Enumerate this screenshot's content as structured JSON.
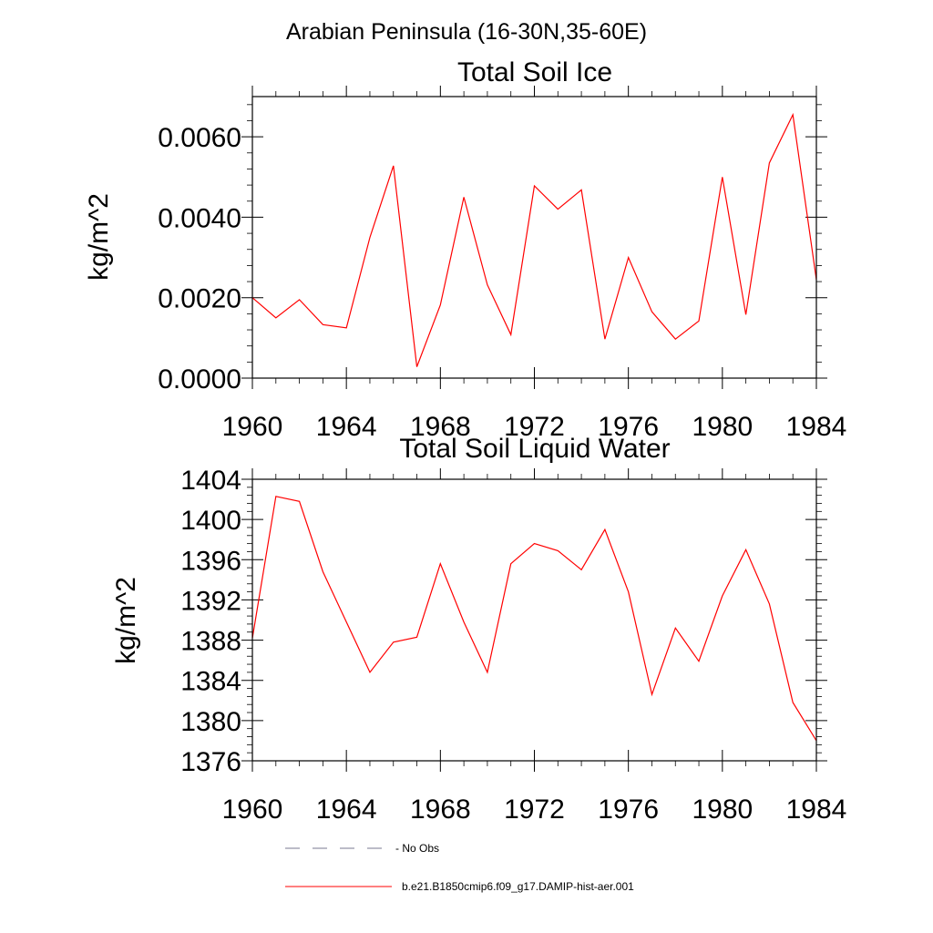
{
  "page_title": "Arabian Peninsula (16-30N,35-60E)",
  "chart_data": [
    {
      "type": "line",
      "title": "Total Soil Ice",
      "xlabel": "",
      "ylabel": "kg/m^2",
      "xlim": [
        1960,
        1984
      ],
      "ylim": [
        0,
        0.007
      ],
      "x_ticks": [
        1960,
        1964,
        1968,
        1972,
        1976,
        1980,
        1984
      ],
      "x_tick_labels": [
        "1960",
        "1964",
        "1968",
        "1972",
        "1976",
        "1980",
        "1984"
      ],
      "y_ticks": [
        0,
        0.002,
        0.004,
        0.006
      ],
      "y_tick_labels": [
        "0.0000",
        "0.0020",
        "0.0040",
        "0.0060"
      ],
      "x": [
        1960,
        1961,
        1962,
        1963,
        1964,
        1965,
        1966,
        1967,
        1968,
        1969,
        1970,
        1971,
        1972,
        1973,
        1974,
        1975,
        1976,
        1977,
        1978,
        1979,
        1980,
        1981,
        1982,
        1983,
        1984
      ],
      "series": [
        {
          "name": "b.e21.B1850cmip6.f09_g17.DAMIP-hist-aer.001",
          "color": "#ff0000",
          "values": [
            0.002,
            0.0015,
            0.00195,
            0.00133,
            0.00125,
            0.0035,
            0.00528,
            0.00028,
            0.00182,
            0.0045,
            0.00232,
            0.00108,
            0.00478,
            0.0042,
            0.00468,
            0.00097,
            0.003,
            0.00165,
            0.00097,
            0.00142,
            0.005,
            0.00158,
            0.00535,
            0.00655,
            0.00245
          ]
        }
      ]
    },
    {
      "type": "line",
      "title": "Total Soil Liquid Water",
      "xlabel": "",
      "ylabel": "kg/m^2",
      "xlim": [
        1960,
        1984
      ],
      "ylim": [
        1376,
        1404
      ],
      "x_ticks": [
        1960,
        1964,
        1968,
        1972,
        1976,
        1980,
        1984
      ],
      "x_tick_labels": [
        "1960",
        "1964",
        "1968",
        "1972",
        "1976",
        "1980",
        "1984"
      ],
      "y_ticks": [
        1376,
        1380,
        1384,
        1388,
        1392,
        1396,
        1400,
        1404
      ],
      "y_tick_labels": [
        "1376",
        "1380",
        "1384",
        "1388",
        "1392",
        "1396",
        "1400",
        "1404"
      ],
      "x": [
        1960,
        1961,
        1962,
        1963,
        1964,
        1965,
        1966,
        1967,
        1968,
        1969,
        1970,
        1971,
        1972,
        1973,
        1974,
        1975,
        1976,
        1977,
        1978,
        1979,
        1980,
        1981,
        1982,
        1983,
        1984
      ],
      "series": [
        {
          "name": "b.e21.B1850cmip6.f09_g17.DAMIP-hist-aer.001",
          "color": "#ff0000",
          "values": [
            1388.2,
            1402.3,
            1401.8,
            1394.8,
            1389.8,
            1384.8,
            1387.8,
            1388.3,
            1395.6,
            1389.8,
            1384.8,
            1395.6,
            1397.6,
            1396.9,
            1395.0,
            1399.0,
            1392.8,
            1382.6,
            1389.2,
            1385.9,
            1392.4,
            1397.0,
            1391.6,
            1381.8,
            1378.0
          ]
        }
      ]
    }
  ],
  "legend": {
    "position": "bottom",
    "items": [
      {
        "label": "- No Obs",
        "style": "dashed",
        "color": "#7a7a90"
      },
      {
        "label": "b.e21.B1850cmip6.f09_g17.DAMIP-hist-aer.001",
        "style": "solid",
        "color": "#ff0000"
      }
    ]
  }
}
